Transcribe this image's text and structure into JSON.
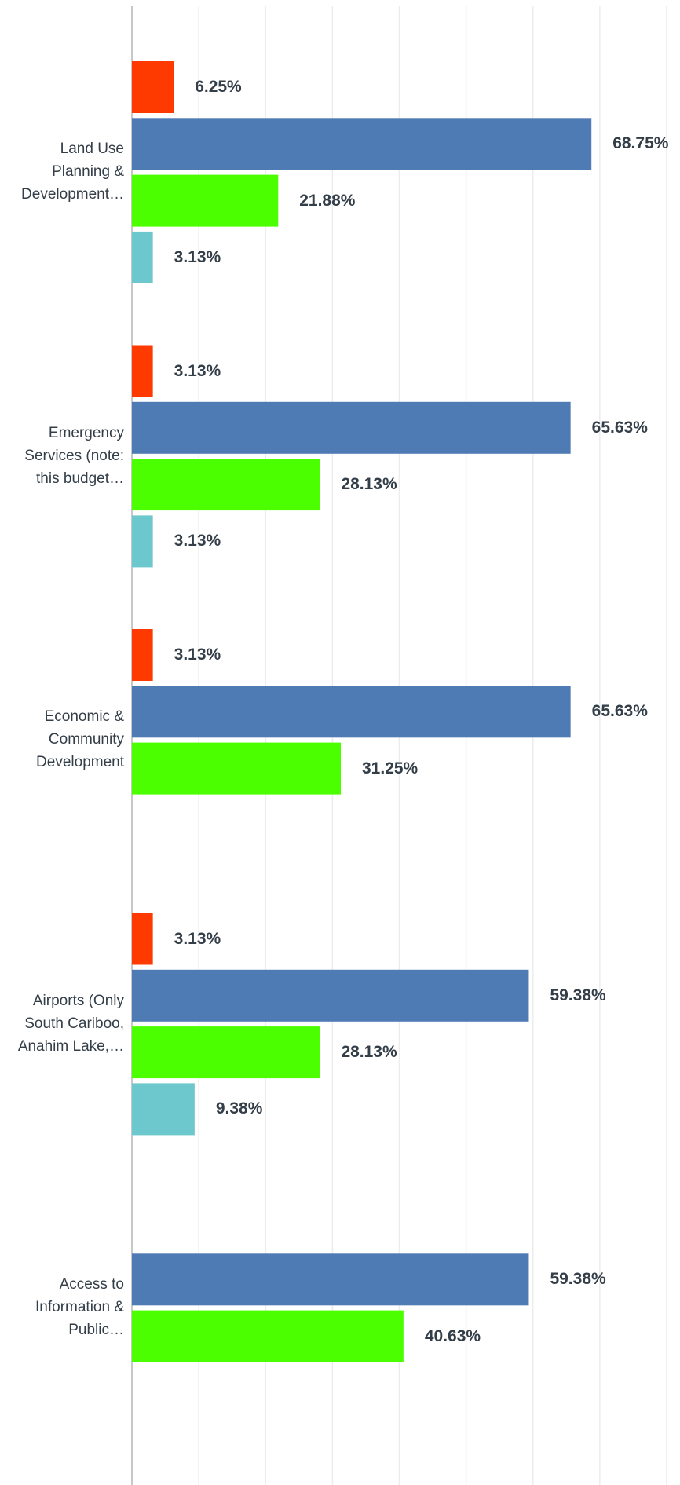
{
  "chart_data": {
    "type": "bar",
    "orientation": "horizontal",
    "categories": [
      "Land Use Planning & Development…",
      "Emergency Services (note: this budget…",
      "Economic & Community Development",
      "Airports (Only South Cariboo, Anahim Lake,…",
      "Access to Information & Public…"
    ],
    "series": [
      {
        "color": "#ff3a00",
        "values": [
          6.25,
          3.13,
          3.13,
          3.13,
          null
        ],
        "value_labels": [
          "6.25%",
          "3.13%",
          "3.13%",
          "3.13%",
          null
        ]
      },
      {
        "color": "#4f7bb5",
        "values": [
          68.75,
          65.63,
          65.63,
          59.38,
          59.38
        ],
        "value_labels": [
          "68.75%",
          "65.63%",
          "65.63%",
          "59.38%",
          "59.38%"
        ]
      },
      {
        "color": "#4cff00",
        "values": [
          21.88,
          28.13,
          31.25,
          28.13,
          40.63
        ],
        "value_labels": [
          "21.88%",
          "28.13%",
          "31.25%",
          "28.13%",
          "40.63%"
        ]
      },
      {
        "color": "#6cc8cc",
        "values": [
          3.13,
          3.13,
          null,
          9.38,
          null
        ],
        "value_labels": [
          "3.13%",
          "3.13%",
          null,
          "9.38%",
          null
        ]
      }
    ],
    "xlim": [
      0,
      82
    ],
    "xticks": [
      0,
      10,
      20,
      30,
      40,
      50,
      60,
      70,
      80
    ],
    "grid": true
  }
}
